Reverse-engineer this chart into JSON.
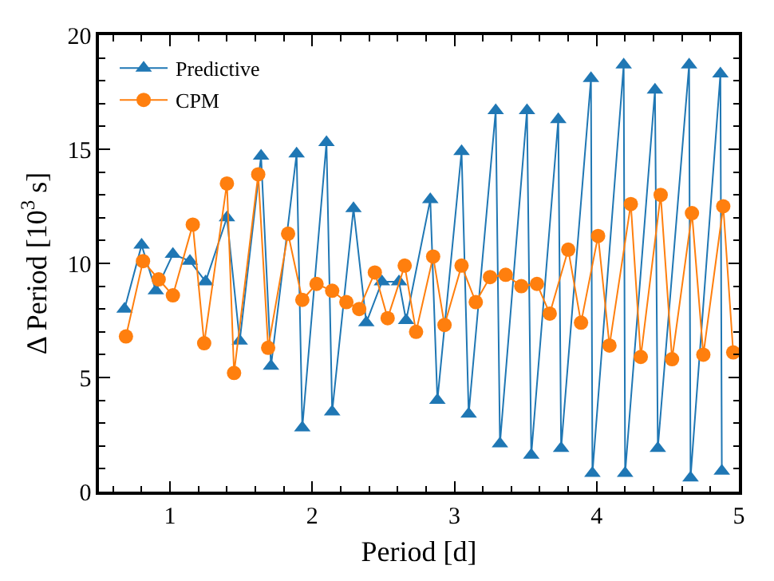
{
  "chart_data": {
    "type": "line",
    "xlabel": "Period [d]",
    "ylabel": "Δ Period [10$^{3}$ s]",
    "xlim": [
      0.5,
      5
    ],
    "xticks": [
      1,
      2,
      3,
      4,
      5
    ],
    "ylim": [
      0,
      20
    ],
    "yticks": [
      0,
      5,
      10,
      15,
      20
    ],
    "grid": false,
    "legend": "top left",
    "series": [
      {
        "name": "Predictive",
        "color": "#1f77b4",
        "marker": "triangle",
        "x": [
          0.68,
          0.8,
          0.9,
          1.02,
          1.14,
          1.25,
          1.4,
          1.49,
          1.64,
          1.71,
          1.89,
          1.93,
          2.1,
          2.14,
          2.29,
          2.38,
          2.49,
          2.61,
          2.66,
          2.83,
          2.88,
          3.05,
          3.1,
          3.29,
          3.32,
          3.51,
          3.54,
          3.73,
          3.75,
          3.96,
          3.97,
          4.19,
          4.2,
          4.41,
          4.43,
          4.65,
          4.66,
          4.87,
          4.88
        ],
        "values": [
          8.0,
          10.8,
          8.8,
          10.4,
          10.1,
          9.2,
          12.0,
          6.6,
          14.7,
          5.5,
          14.8,
          2.8,
          15.3,
          3.5,
          12.4,
          7.4,
          9.2,
          9.2,
          7.5,
          12.8,
          4.0,
          14.9,
          3.4,
          16.7,
          2.1,
          16.7,
          1.6,
          16.3,
          1.9,
          18.1,
          0.8,
          18.7,
          0.8,
          17.6,
          1.9,
          18.7,
          0.6,
          18.3,
          0.9
        ]
      },
      {
        "name": "CPM",
        "color": "#ff7f0e",
        "marker": "circle",
        "x": [
          0.69,
          0.81,
          0.92,
          1.02,
          1.16,
          1.24,
          1.4,
          1.45,
          1.62,
          1.69,
          1.83,
          1.93,
          2.03,
          2.14,
          2.24,
          2.33,
          2.44,
          2.53,
          2.65,
          2.73,
          2.85,
          2.93,
          3.05,
          3.15,
          3.25,
          3.36,
          3.47,
          3.58,
          3.67,
          3.8,
          3.89,
          4.01,
          4.09,
          4.24,
          4.31,
          4.45,
          4.53,
          4.67,
          4.75,
          4.89,
          4.96
        ],
        "values": [
          6.8,
          10.1,
          9.3,
          8.6,
          11.7,
          6.5,
          13.5,
          5.2,
          13.9,
          6.3,
          11.3,
          8.4,
          9.1,
          8.8,
          8.3,
          8.0,
          9.6,
          7.6,
          9.9,
          7.0,
          10.3,
          7.3,
          9.9,
          8.3,
          9.4,
          9.5,
          9.0,
          9.1,
          7.8,
          10.6,
          7.4,
          11.2,
          6.4,
          12.6,
          5.9,
          13.0,
          5.8,
          12.2,
          6.0,
          12.5,
          6.1
        ]
      }
    ]
  }
}
